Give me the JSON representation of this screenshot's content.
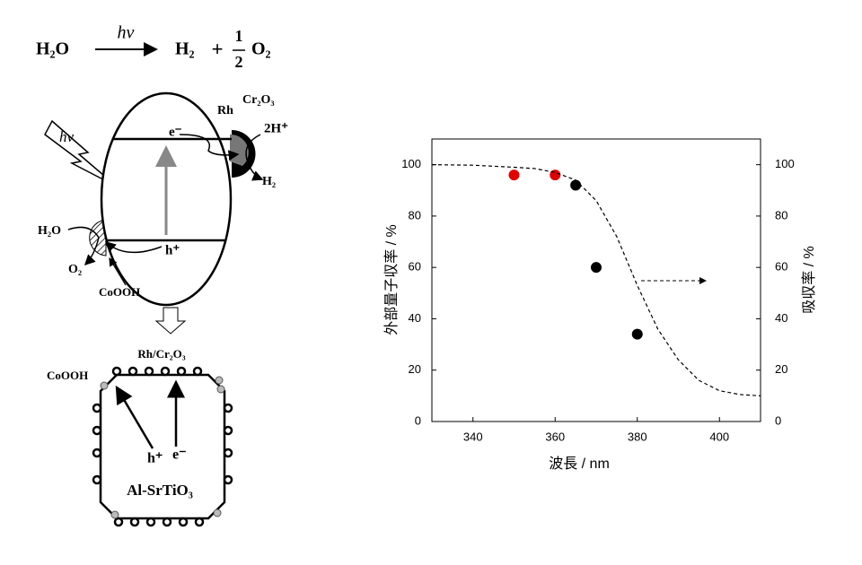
{
  "diagram": {
    "equation": {
      "reactant": "H₂O",
      "light": "hν",
      "product1": "H₂",
      "plus": "+",
      "numerator": "1",
      "denominator": "2",
      "product2": "O₂"
    },
    "particle": {
      "light": "hν",
      "electron": "e⁻",
      "hole": "h⁺",
      "rh": "Rh",
      "cr2o3": "Cr₂O₃",
      "protons": "2H⁺",
      "hydrogen": "H₂",
      "water": "H₂O",
      "oxygen": "O₂",
      "cocatalyst": "CoOOH"
    },
    "crystal": {
      "rh_cr2o3": "Rh/Cr₂O₃",
      "cocatalyst": "CoOOH",
      "hole": "h⁺",
      "electron": "e⁻",
      "name": "Al-SrTiO₃"
    }
  },
  "chart_data": {
    "type": "scatter",
    "xlabel": "波長 / nm",
    "ylabel": "外部量子収率 / %",
    "y2label": "吸収率 / %",
    "xlim": [
      330,
      410
    ],
    "xticks": [
      340,
      360,
      380,
      400
    ],
    "ylim": [
      0,
      110
    ],
    "yticks": [
      0,
      20,
      40,
      60,
      80,
      100
    ],
    "y2lim": [
      0,
      110
    ],
    "y2ticks": [
      0,
      20,
      40,
      60,
      80,
      100
    ],
    "series": [
      {
        "type": "scatter",
        "color": "#e00000",
        "x": [
          350,
          360
        ],
        "values": [
          96,
          96
        ]
      },
      {
        "type": "scatter",
        "color": "#000000",
        "x": [
          365,
          370,
          380
        ],
        "values": [
          92,
          60,
          34
        ]
      },
      {
        "type": "line",
        "axis": "y2",
        "color": "#000000",
        "dashed": true,
        "x": [
          330,
          340,
          350,
          355,
          360,
          365,
          370,
          375,
          380,
          385,
          390,
          395,
          400,
          405,
          410
        ],
        "values": [
          100,
          99.8,
          99,
          98.5,
          97,
          94,
          86,
          72,
          53,
          36,
          24,
          16,
          12,
          10.5,
          10
        ]
      }
    ]
  }
}
